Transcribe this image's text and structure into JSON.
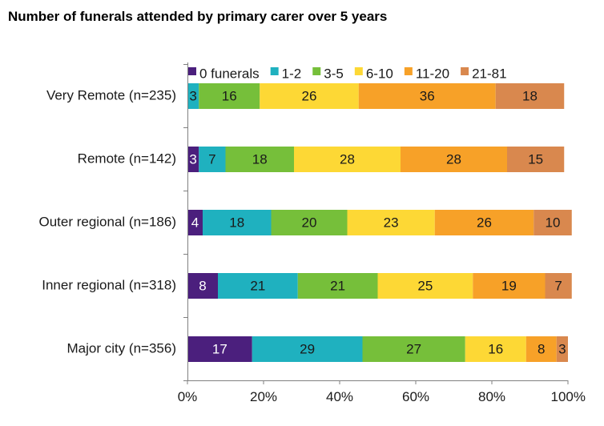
{
  "chart_data": {
    "type": "bar",
    "orientation": "horizontal",
    "stacked": true,
    "normalized": true,
    "title": "Number of funerals attended by primary carer over 5 years",
    "xlabel": "",
    "ylabel": "",
    "xlim": [
      0,
      100
    ],
    "x_ticks": [
      "0%",
      "20%",
      "40%",
      "60%",
      "80%",
      "100%"
    ],
    "grid": false,
    "legend_position": "top",
    "categories": [
      "Very Remote (n=235)",
      "Remote (n=142)",
      "Outer regional (n=186)",
      "Inner regional (n=318)",
      "Major city (n=356)"
    ],
    "series": [
      {
        "name": "0 funerals",
        "color": "#4b1f7d",
        "label_color": "#ffffff",
        "values": [
          0,
          3,
          4,
          8,
          17
        ]
      },
      {
        "name": "1-2",
        "color": "#1fb1bf",
        "label_color": "#1a1a1a",
        "values": [
          3,
          7,
          18,
          21,
          29
        ]
      },
      {
        "name": "3-5",
        "color": "#76bf3a",
        "label_color": "#1a1a1a",
        "values": [
          16,
          18,
          20,
          21,
          27
        ]
      },
      {
        "name": "6-10",
        "color": "#fdd835",
        "label_color": "#1a1a1a",
        "values": [
          26,
          28,
          23,
          25,
          16
        ]
      },
      {
        "name": "11-20",
        "color": "#f7a128",
        "label_color": "#1a1a1a",
        "values": [
          36,
          28,
          26,
          19,
          8
        ]
      },
      {
        "name": "21-81",
        "color": "#d9884e",
        "label_color": "#1a1a1a",
        "values": [
          18,
          15,
          10,
          7,
          3
        ]
      }
    ]
  }
}
